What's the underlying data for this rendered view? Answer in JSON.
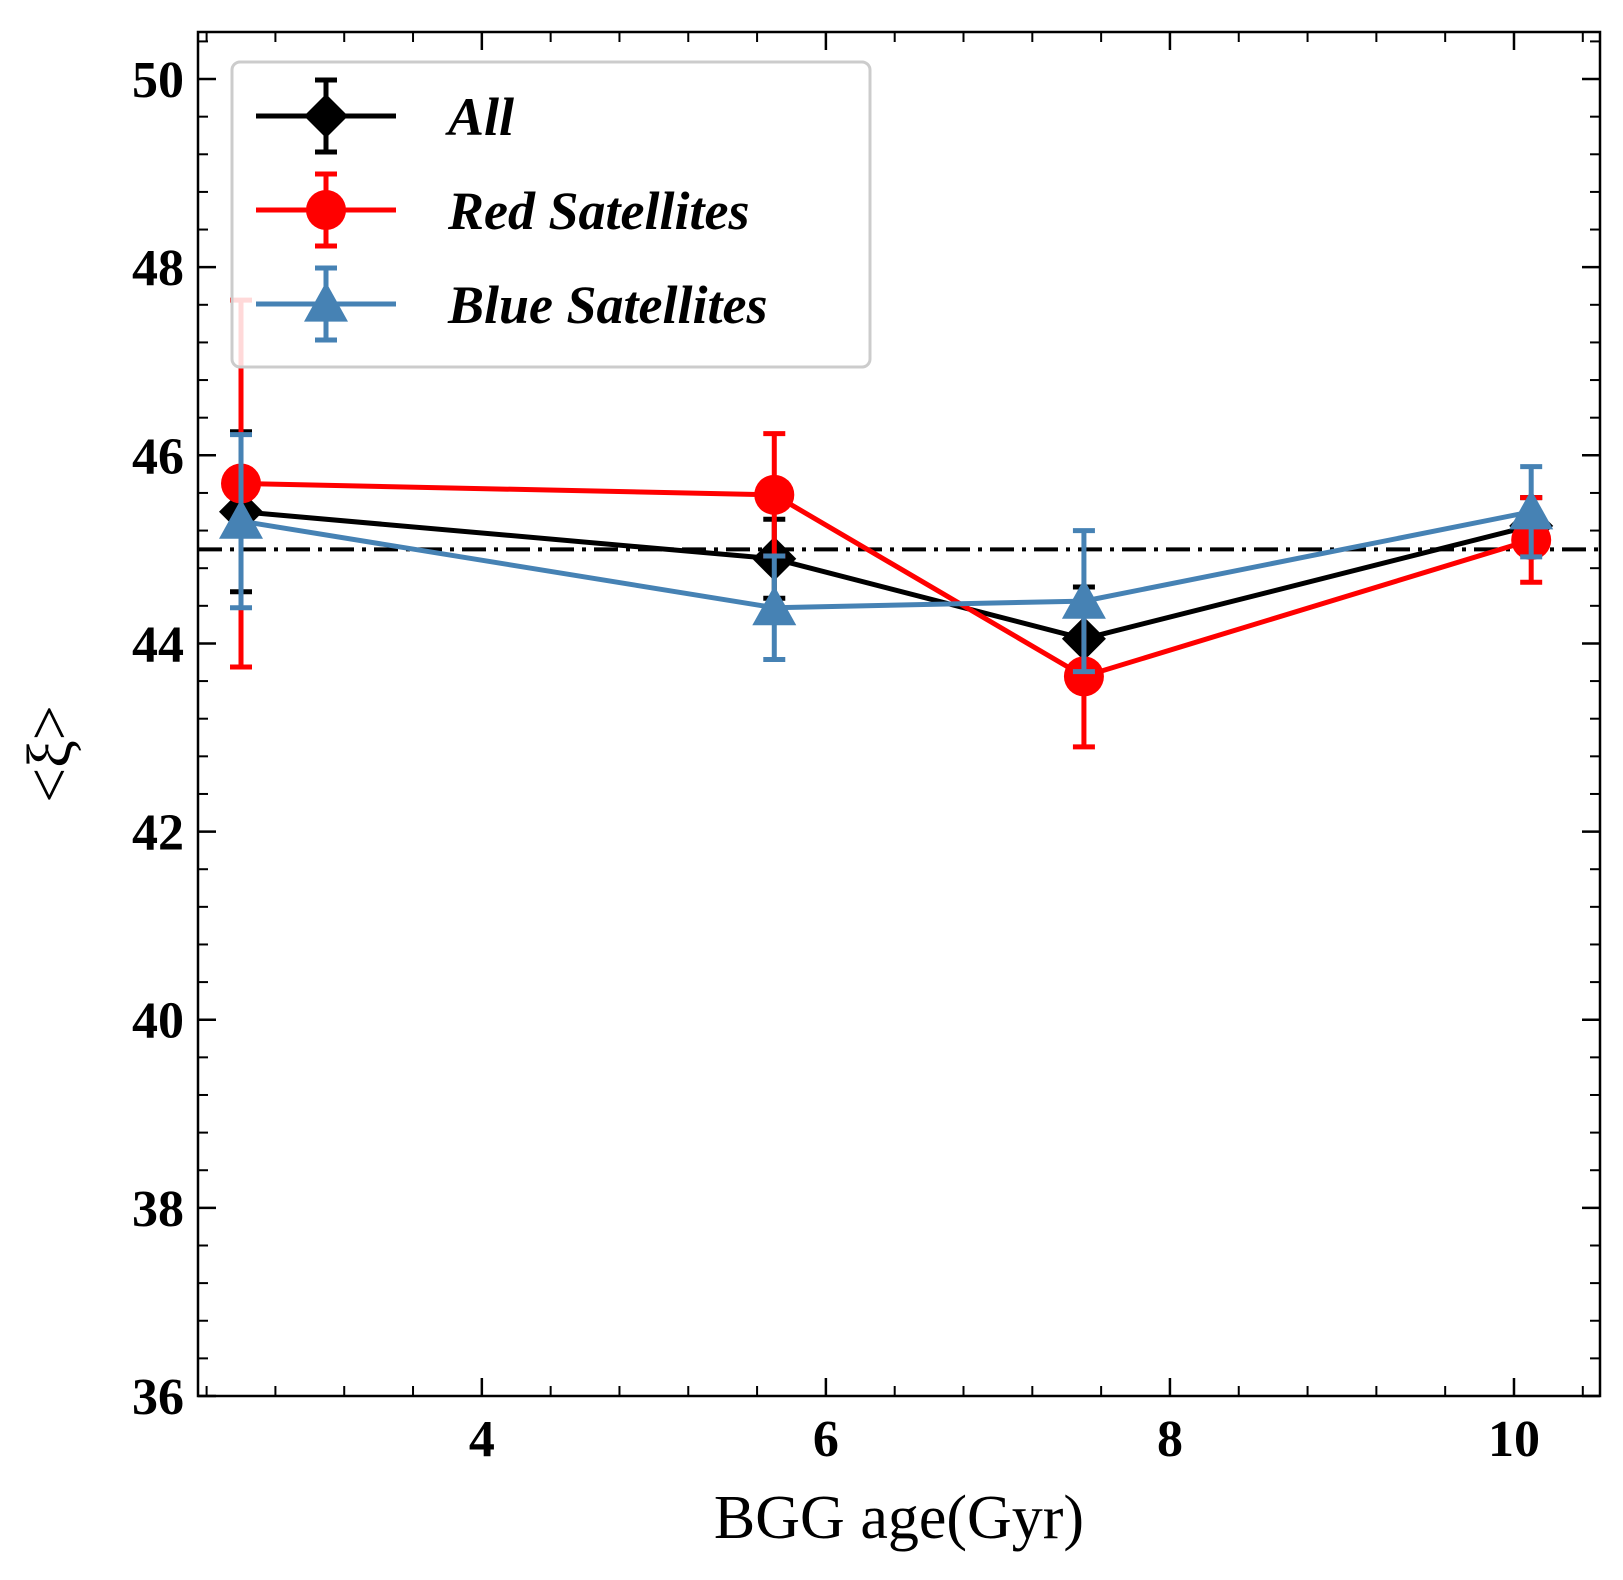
{
  "chart_data": {
    "type": "line",
    "title": "",
    "xlabel": "BGG age(Gyr)",
    "ylabel": "<ξ>",
    "xlim": [
      2.35,
      10.5
    ],
    "ylim": [
      36,
      50.5
    ],
    "xticks": [
      4,
      6,
      8,
      10
    ],
    "xtick_labels": [
      "4",
      "6",
      "8",
      "10"
    ],
    "yticks": [
      36,
      38,
      40,
      42,
      44,
      46,
      48,
      50
    ],
    "ytick_labels": [
      "36",
      "38",
      "40",
      "42",
      "44",
      "46",
      "48",
      "50"
    ],
    "legend_position": "top-left",
    "reference_line": {
      "y": 45,
      "style": "dash-dot",
      "color": "#000000"
    },
    "series": [
      {
        "name": "All",
        "color": "#000000",
        "marker": "diamond",
        "x": [
          2.6,
          5.7,
          7.5,
          10.1
        ],
        "y": [
          45.4,
          44.9,
          44.05,
          45.25
        ],
        "yerr": [
          0.85,
          0.42,
          0.55,
          0.3
        ]
      },
      {
        "name": "Red Satellites",
        "color": "#ff0000",
        "marker": "circle",
        "x": [
          2.6,
          5.7,
          7.5,
          10.1
        ],
        "y": [
          45.7,
          45.58,
          43.65,
          45.1
        ],
        "yerr": [
          1.95,
          0.65,
          0.75,
          0.45
        ]
      },
      {
        "name": "Blue Satellites",
        "color": "#4682b4",
        "marker": "triangle",
        "x": [
          2.6,
          5.7,
          7.5,
          10.1
        ],
        "y": [
          45.3,
          44.38,
          44.45,
          45.4
        ],
        "yerr": [
          0.92,
          0.55,
          0.75,
          0.48
        ]
      }
    ]
  }
}
